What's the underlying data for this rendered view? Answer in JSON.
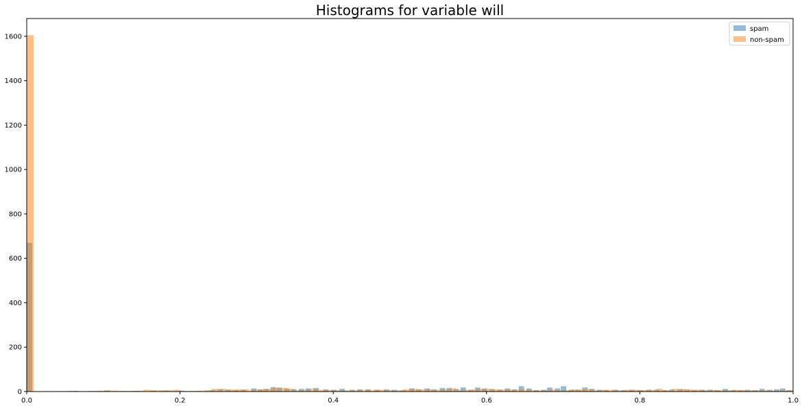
{
  "chart_data": {
    "type": "bar",
    "title": "Histograms for variable will",
    "xlabel": "",
    "ylabel": "",
    "xlim": [
      0,
      1
    ],
    "ylim": [
      0,
      1680
    ],
    "xticks": [
      "0.0",
      "0.2",
      "0.4",
      "0.6",
      "0.8",
      "1.0"
    ],
    "yticks": [
      "0",
      "200",
      "400",
      "600",
      "800",
      "1000",
      "1200",
      "1400",
      "1600"
    ],
    "legend_position": "top-right",
    "grid": false,
    "series": [
      {
        "name": "spam",
        "color": "#1f77b4",
        "opacity": 0.5,
        "bin_width": 0.007,
        "points": [
          [
            0.0,
            670
          ],
          [
            0.012,
            0
          ],
          [
            0.021,
            2
          ],
          [
            0.043,
            2
          ],
          [
            0.061,
            3
          ],
          [
            0.086,
            2
          ],
          [
            0.101,
            3
          ],
          [
            0.119,
            2
          ],
          [
            0.139,
            3
          ],
          [
            0.162,
            3
          ],
          [
            0.179,
            4
          ],
          [
            0.199,
            4
          ],
          [
            0.219,
            2
          ],
          [
            0.239,
            6
          ],
          [
            0.249,
            10
          ],
          [
            0.259,
            8
          ],
          [
            0.269,
            6
          ],
          [
            0.279,
            8
          ],
          [
            0.293,
            14
          ],
          [
            0.301,
            10
          ],
          [
            0.309,
            12
          ],
          [
            0.318,
            20
          ],
          [
            0.326,
            18
          ],
          [
            0.336,
            14
          ],
          [
            0.345,
            10
          ],
          [
            0.355,
            12
          ],
          [
            0.364,
            14
          ],
          [
            0.374,
            16
          ],
          [
            0.387,
            10
          ],
          [
            0.397,
            8
          ],
          [
            0.408,
            12
          ],
          [
            0.421,
            8
          ],
          [
            0.431,
            10
          ],
          [
            0.442,
            10
          ],
          [
            0.454,
            8
          ],
          [
            0.466,
            10
          ],
          [
            0.476,
            8
          ],
          [
            0.488,
            6
          ],
          [
            0.499,
            14
          ],
          [
            0.508,
            10
          ],
          [
            0.519,
            14
          ],
          [
            0.528,
            10
          ],
          [
            0.539,
            16
          ],
          [
            0.548,
            16
          ],
          [
            0.557,
            12
          ],
          [
            0.566,
            18
          ],
          [
            0.576,
            8
          ],
          [
            0.585,
            18
          ],
          [
            0.594,
            14
          ],
          [
            0.604,
            10
          ],
          [
            0.614,
            8
          ],
          [
            0.624,
            14
          ],
          [
            0.633,
            10
          ],
          [
            0.642,
            24
          ],
          [
            0.652,
            14
          ],
          [
            0.661,
            6
          ],
          [
            0.671,
            8
          ],
          [
            0.679,
            18
          ],
          [
            0.689,
            14
          ],
          [
            0.697,
            24
          ],
          [
            0.707,
            8
          ],
          [
            0.716,
            8
          ],
          [
            0.725,
            18
          ],
          [
            0.734,
            12
          ],
          [
            0.744,
            8
          ],
          [
            0.753,
            6
          ],
          [
            0.765,
            8
          ],
          [
            0.776,
            6
          ],
          [
            0.786,
            8
          ],
          [
            0.797,
            6
          ],
          [
            0.808,
            8
          ],
          [
            0.819,
            8
          ],
          [
            0.829,
            6
          ],
          [
            0.838,
            8
          ],
          [
            0.849,
            10
          ],
          [
            0.858,
            8
          ],
          [
            0.868,
            6
          ],
          [
            0.878,
            8
          ],
          [
            0.888,
            8
          ],
          [
            0.898,
            6
          ],
          [
            0.908,
            12
          ],
          [
            0.918,
            6
          ],
          [
            0.928,
            6
          ],
          [
            0.937,
            8
          ],
          [
            0.947,
            6
          ],
          [
            0.956,
            12
          ],
          [
            0.966,
            8
          ],
          [
            0.975,
            10
          ],
          [
            0.983,
            14
          ],
          [
            0.991,
            6
          ]
        ]
      },
      {
        "name": "non-spam",
        "color": "#ff7f0e",
        "opacity": 0.5,
        "bin_width": 0.009,
        "points": [
          [
            0.0,
            1605
          ],
          [
            0.015,
            0
          ],
          [
            0.035,
            2
          ],
          [
            0.054,
            3
          ],
          [
            0.079,
            3
          ],
          [
            0.091,
            4
          ],
          [
            0.101,
            6
          ],
          [
            0.111,
            4
          ],
          [
            0.122,
            3
          ],
          [
            0.133,
            3
          ],
          [
            0.144,
            4
          ],
          [
            0.152,
            8
          ],
          [
            0.161,
            6
          ],
          [
            0.171,
            6
          ],
          [
            0.181,
            6
          ],
          [
            0.191,
            8
          ],
          [
            0.201,
            2
          ],
          [
            0.211,
            3
          ],
          [
            0.221,
            4
          ],
          [
            0.231,
            6
          ],
          [
            0.241,
            12
          ],
          [
            0.251,
            12
          ],
          [
            0.261,
            10
          ],
          [
            0.271,
            10
          ],
          [
            0.281,
            10
          ],
          [
            0.291,
            8
          ],
          [
            0.301,
            10
          ],
          [
            0.311,
            12
          ],
          [
            0.321,
            16
          ],
          [
            0.331,
            16
          ],
          [
            0.341,
            12
          ],
          [
            0.351,
            6
          ],
          [
            0.361,
            8
          ],
          [
            0.371,
            12
          ],
          [
            0.381,
            8
          ],
          [
            0.391,
            6
          ],
          [
            0.401,
            6
          ],
          [
            0.411,
            6
          ],
          [
            0.421,
            6
          ],
          [
            0.431,
            8
          ],
          [
            0.441,
            8
          ],
          [
            0.451,
            8
          ],
          [
            0.461,
            8
          ],
          [
            0.471,
            6
          ],
          [
            0.481,
            6
          ],
          [
            0.491,
            10
          ],
          [
            0.501,
            12
          ],
          [
            0.511,
            10
          ],
          [
            0.521,
            10
          ],
          [
            0.531,
            8
          ],
          [
            0.541,
            10
          ],
          [
            0.551,
            14
          ],
          [
            0.561,
            6
          ],
          [
            0.571,
            8
          ],
          [
            0.581,
            10
          ],
          [
            0.591,
            12
          ],
          [
            0.601,
            12
          ],
          [
            0.611,
            10
          ],
          [
            0.621,
            10
          ],
          [
            0.631,
            8
          ],
          [
            0.641,
            10
          ],
          [
            0.651,
            8
          ],
          [
            0.661,
            6
          ],
          [
            0.671,
            6
          ],
          [
            0.681,
            8
          ],
          [
            0.691,
            6
          ],
          [
            0.701,
            6
          ],
          [
            0.711,
            10
          ],
          [
            0.721,
            10
          ],
          [
            0.731,
            10
          ],
          [
            0.741,
            6
          ],
          [
            0.751,
            8
          ],
          [
            0.761,
            8
          ],
          [
            0.771,
            6
          ],
          [
            0.781,
            8
          ],
          [
            0.791,
            8
          ],
          [
            0.801,
            6
          ],
          [
            0.811,
            8
          ],
          [
            0.821,
            12
          ],
          [
            0.831,
            6
          ],
          [
            0.841,
            12
          ],
          [
            0.851,
            12
          ],
          [
            0.861,
            10
          ],
          [
            0.871,
            8
          ],
          [
            0.881,
            6
          ],
          [
            0.891,
            8
          ],
          [
            0.901,
            6
          ],
          [
            0.911,
            6
          ],
          [
            0.921,
            8
          ],
          [
            0.931,
            6
          ],
          [
            0.941,
            6
          ],
          [
            0.951,
            6
          ],
          [
            0.961,
            6
          ],
          [
            0.971,
            4
          ],
          [
            0.981,
            6
          ],
          [
            0.991,
            6
          ]
        ]
      }
    ]
  }
}
